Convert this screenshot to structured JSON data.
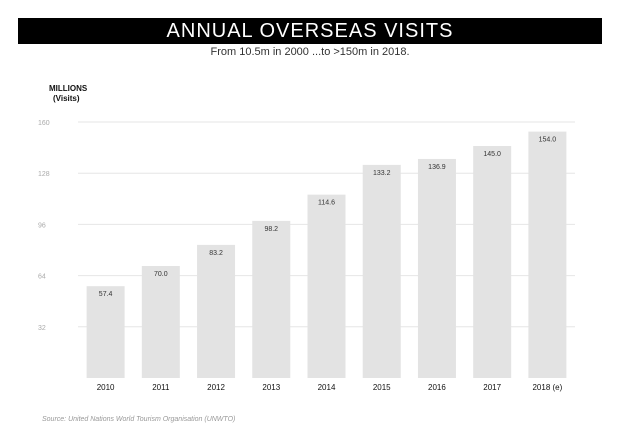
{
  "header": {
    "title": "ANNUAL OVERSEAS VISITS",
    "subtitle": "From 10.5m in 2000 ...to >150m in 2018."
  },
  "footer": {
    "source": "Source: United Nations World Tourism Organisation (UNWTO)"
  },
  "chart_data": {
    "type": "bar",
    "title": "ANNUAL OVERSEAS VISITS",
    "subtitle": "From 10.5m in 2000 ...to >150m in 2018.",
    "ylabel": "MILLIONS",
    "ylabel_sub": "(Visits)",
    "xlabel": "",
    "categories": [
      "2010",
      "2011",
      "2012",
      "2013",
      "2014",
      "2015",
      "2016",
      "2017",
      "2018 (e)"
    ],
    "values": [
      57.4,
      70.0,
      83.2,
      98.2,
      114.6,
      133.2,
      136.9,
      145.0,
      154.0
    ],
    "value_labels": [
      "57.4",
      "70.0",
      "83.2",
      "98.2",
      "114.6",
      "133.2",
      "136.9",
      "145.0",
      "154.0"
    ],
    "yticks": [
      32,
      64,
      96,
      128,
      160
    ],
    "ylim": [
      0,
      160
    ],
    "grid": true,
    "legend": "none",
    "colors": {
      "bar": "#e3e3e3",
      "grid": "#e6e6e6",
      "tick_label": "#aaaaaa",
      "value_label": "#333333",
      "category_label": "#111111"
    }
  }
}
